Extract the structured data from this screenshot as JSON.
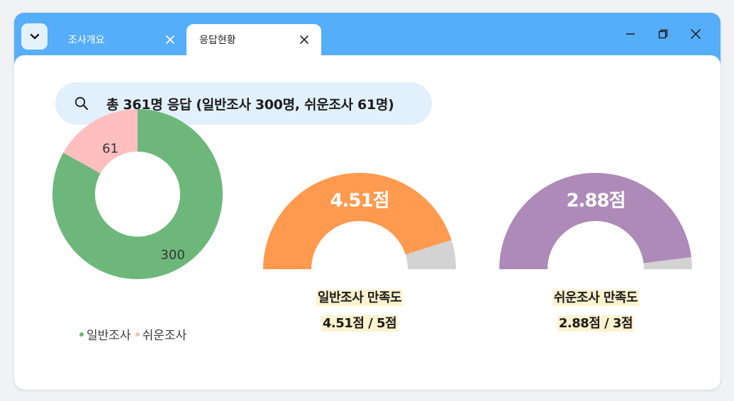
{
  "tabs": [
    {
      "label": "조사개요"
    },
    {
      "label": "응답현황"
    }
  ],
  "search": {
    "text": "총 361명 응답 (일반조사 300명, 쉬운조사 61명)"
  },
  "colors": {
    "titlebar": "#56adf9",
    "general": "#6db77a",
    "easy": "#ffbfbf",
    "gauge_general": "#ff9a4f",
    "gauge_easy": "#ae8ab8",
    "gauge_rest": "#d3d3d3"
  },
  "chart_data": [
    {
      "type": "pie",
      "categories": [
        "일반조사",
        "쉬운조사"
      ],
      "values": [
        300,
        61
      ],
      "data_labels": [
        "300",
        "61"
      ],
      "legend": [
        "일반조사",
        "쉬운조사"
      ],
      "legend_position": "bottom"
    },
    {
      "type": "pie",
      "value": 4.51,
      "max": 5,
      "center_label": "4.51점",
      "title": "일반조사 만족도",
      "subtitle": "4.51점 / 5점"
    },
    {
      "type": "pie",
      "value": 2.88,
      "max": 3,
      "center_label": "2.88점",
      "title": "쉬운조사 만족도",
      "subtitle": "2.88점 / 3점"
    }
  ]
}
